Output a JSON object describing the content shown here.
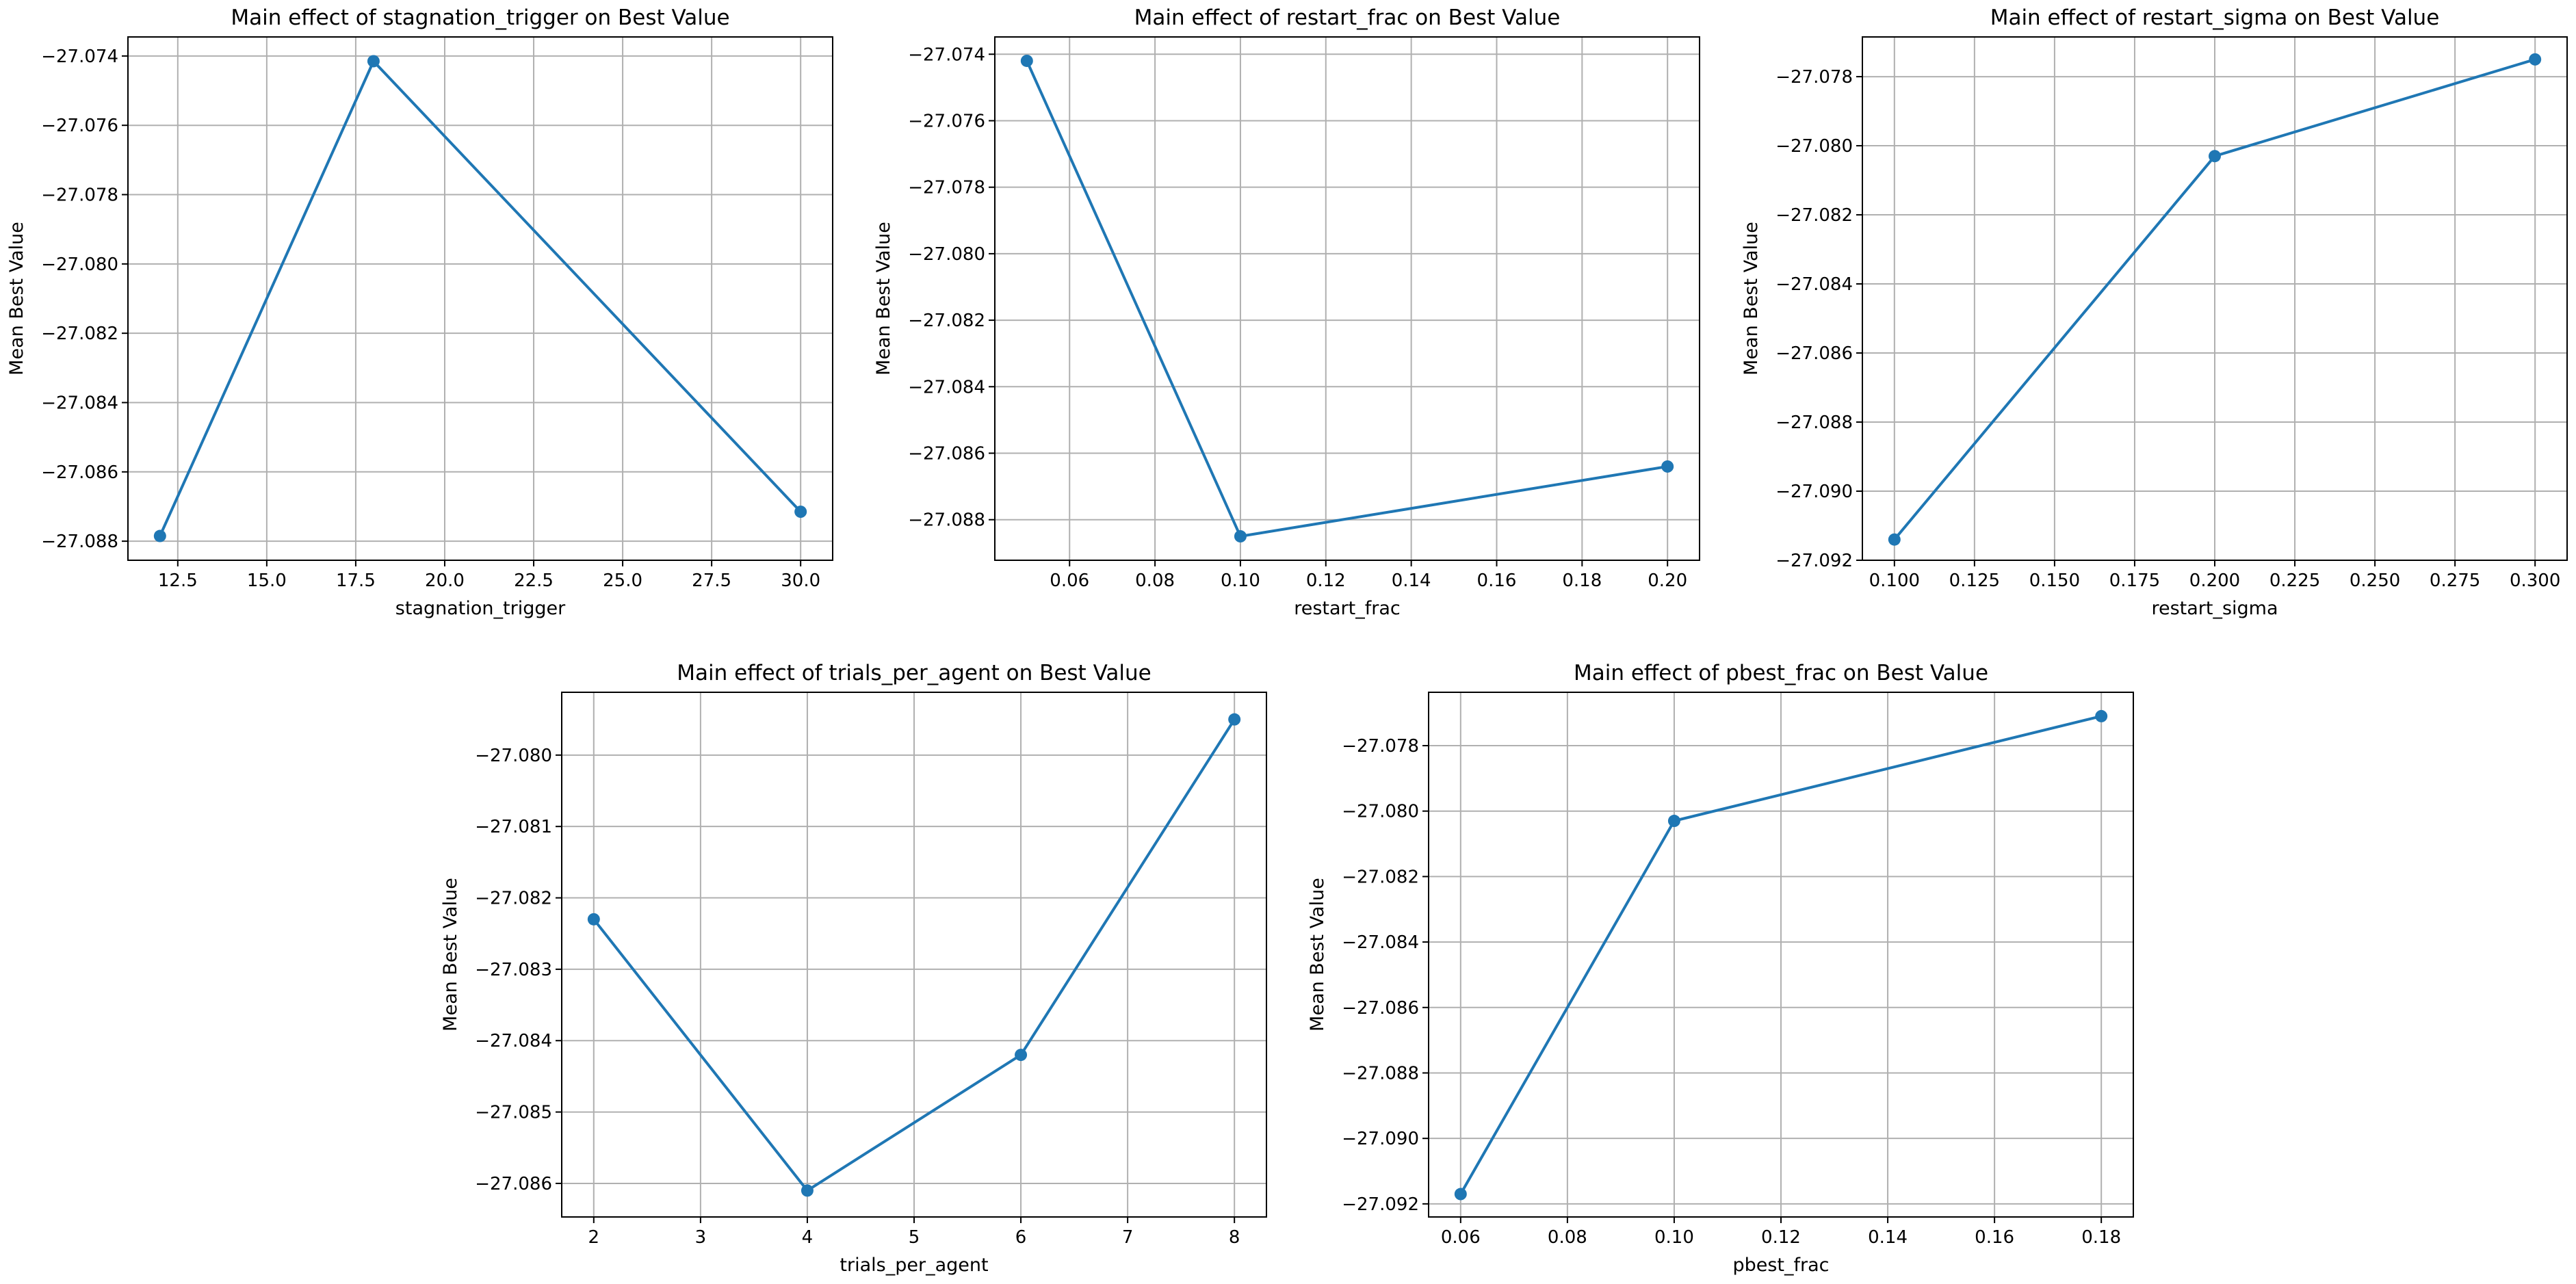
{
  "chart_data": [
    {
      "type": "line",
      "title": "Main effect of stagnation_trigger on Best Value",
      "xlabel": "stagnation_trigger",
      "ylabel": "Mean Best Value",
      "x": [
        12,
        18,
        30
      ],
      "y": [
        -27.08785,
        -27.07415,
        -27.08715
      ],
      "xlim": [
        11.1,
        30.9
      ],
      "ylim": [
        -27.08855,
        -27.07345
      ],
      "xticks": [
        12.5,
        15.0,
        17.5,
        20.0,
        22.5,
        25.0,
        27.5,
        30.0
      ],
      "xtick_labels": [
        "12.5",
        "15.0",
        "17.5",
        "20.0",
        "22.5",
        "25.0",
        "27.5",
        "30.0"
      ],
      "yticks": [
        -27.088,
        -27.086,
        -27.084,
        -27.082,
        -27.08,
        -27.078,
        -27.076,
        -27.074
      ],
      "ytick_labels": [
        "−27.088",
        "−27.086",
        "−27.084",
        "−27.082",
        "−27.080",
        "−27.078",
        "−27.076",
        "−27.074"
      ],
      "grid": true,
      "color": "#1f77b4"
    },
    {
      "type": "line",
      "title": "Main effect of restart_frac on Best Value",
      "xlabel": "restart_frac",
      "ylabel": "Mean Best Value",
      "x": [
        0.05,
        0.1,
        0.2
      ],
      "y": [
        -27.0742,
        -27.0885,
        -27.0864
      ],
      "xlim": [
        0.0425,
        0.2075
      ],
      "ylim": [
        -27.08922,
        -27.07348
      ],
      "xticks": [
        0.06,
        0.08,
        0.1,
        0.12,
        0.14,
        0.16,
        0.18,
        0.2
      ],
      "xtick_labels": [
        "0.06",
        "0.08",
        "0.10",
        "0.12",
        "0.14",
        "0.16",
        "0.18",
        "0.20"
      ],
      "yticks": [
        -27.088,
        -27.086,
        -27.084,
        -27.082,
        -27.08,
        -27.078,
        -27.076,
        -27.074
      ],
      "ytick_labels": [
        "−27.088",
        "−27.086",
        "−27.084",
        "−27.082",
        "−27.080",
        "−27.078",
        "−27.076",
        "−27.074"
      ],
      "grid": true,
      "color": "#1f77b4"
    },
    {
      "type": "line",
      "title": "Main effect of restart_sigma on Best Value",
      "xlabel": "restart_sigma",
      "ylabel": "Mean Best Value",
      "x": [
        0.1,
        0.2,
        0.3
      ],
      "y": [
        -27.0914,
        -27.0803,
        -27.0775
      ],
      "xlim": [
        0.09,
        0.31
      ],
      "ylim": [
        -27.092,
        -27.07685
      ],
      "xticks": [
        0.1,
        0.125,
        0.15,
        0.175,
        0.2,
        0.225,
        0.25,
        0.275,
        0.3
      ],
      "xtick_labels": [
        "0.100",
        "0.125",
        "0.150",
        "0.175",
        "0.200",
        "0.225",
        "0.250",
        "0.275",
        "0.300"
      ],
      "yticks": [
        -27.092,
        -27.09,
        -27.088,
        -27.086,
        -27.084,
        -27.082,
        -27.08,
        -27.078
      ],
      "ytick_labels": [
        "−27.092",
        "−27.090",
        "−27.088",
        "−27.086",
        "−27.084",
        "−27.082",
        "−27.080",
        "−27.078"
      ],
      "grid": true,
      "color": "#1f77b4"
    },
    {
      "type": "line",
      "title": "Main effect of trials_per_agent on Best Value",
      "xlabel": "trials_per_agent",
      "ylabel": "Mean Best Value",
      "x": [
        2,
        4,
        6,
        8
      ],
      "y": [
        -27.0823,
        -27.0861,
        -27.0842,
        -27.0795
      ],
      "xlim": [
        1.7,
        8.3
      ],
      "ylim": [
        -27.08647,
        -27.07912
      ],
      "xticks": [
        2,
        3,
        4,
        5,
        6,
        7,
        8
      ],
      "xtick_labels": [
        "2",
        "3",
        "4",
        "5",
        "6",
        "7",
        "8"
      ],
      "yticks": [
        -27.086,
        -27.085,
        -27.084,
        -27.083,
        -27.082,
        -27.081,
        -27.08
      ],
      "ytick_labels": [
        "−27.086",
        "−27.085",
        "−27.084",
        "−27.083",
        "−27.082",
        "−27.081",
        "−27.080"
      ],
      "grid": true,
      "color": "#1f77b4"
    },
    {
      "type": "line",
      "title": "Main effect of pbest_frac on Best Value",
      "xlabel": "pbest_frac",
      "ylabel": "Mean Best Value",
      "x": [
        0.06,
        0.1,
        0.18
      ],
      "y": [
        -27.0917,
        -27.0803,
        -27.0771
      ],
      "xlim": [
        0.054,
        0.186
      ],
      "ylim": [
        -27.0924,
        -27.07637
      ],
      "xticks": [
        0.06,
        0.08,
        0.1,
        0.12,
        0.14,
        0.16,
        0.18
      ],
      "xtick_labels": [
        "0.06",
        "0.08",
        "0.10",
        "0.12",
        "0.14",
        "0.16",
        "0.18"
      ],
      "yticks": [
        -27.092,
        -27.09,
        -27.088,
        -27.086,
        -27.084,
        -27.082,
        -27.08,
        -27.078
      ],
      "ytick_labels": [
        "−27.092",
        "−27.090",
        "−27.088",
        "−27.086",
        "−27.084",
        "−27.082",
        "−27.080",
        "−27.078"
      ],
      "grid": true,
      "color": "#1f77b4"
    }
  ]
}
